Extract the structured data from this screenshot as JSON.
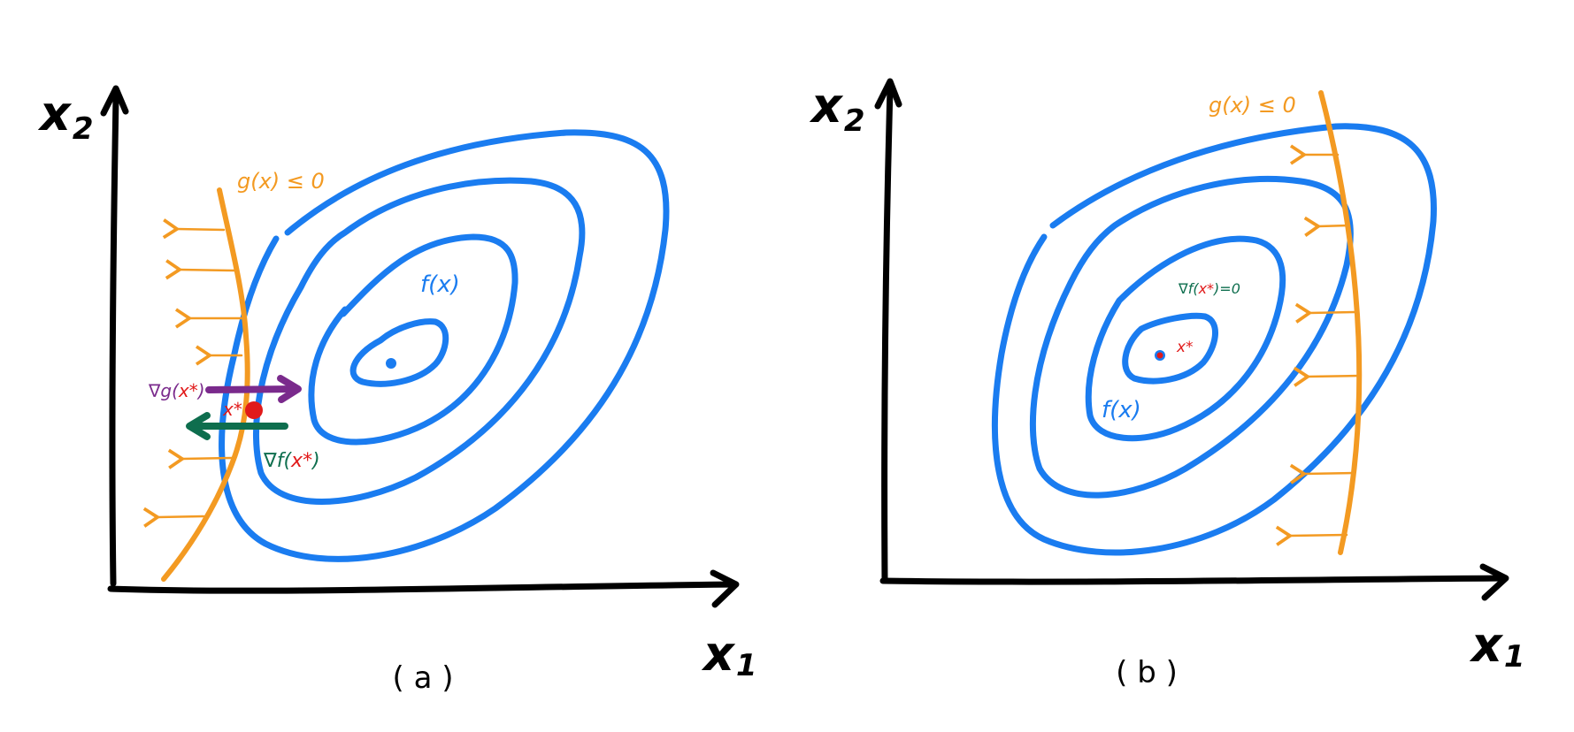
{
  "colors": {
    "axis": "#000000",
    "contour": "#1a7cf0",
    "constraint": "#f39a22",
    "grad_g": "#7a2a8c",
    "grad_f": "#0e6e4e",
    "optimum": "#e11a1a"
  },
  "panel_a": {
    "caption": "( a )",
    "x_axis_label": "x",
    "x_axis_sub": "1",
    "y_axis_label": "x",
    "y_axis_sub": "2",
    "constraint_label": "g(x) ≤ 0",
    "contour_label": "f(x)",
    "grad_g_label_prefix": "∇g(",
    "grad_g_label_x": "x*",
    "grad_g_label_suffix": ")",
    "grad_f_label_prefix": "∇f(",
    "grad_f_label_x": "x*",
    "grad_f_label_suffix": ")",
    "optimum_label": "x*"
  },
  "panel_b": {
    "caption": "( b )",
    "x_axis_label": "x",
    "x_axis_sub": "1",
    "y_axis_label": "x",
    "y_axis_sub": "2",
    "constraint_label": "g(x) ≤ 0",
    "contour_label": "f(x)",
    "grad_f_label_prefix": "∇f(",
    "grad_f_label_x": "x*",
    "grad_f_label_suffix": ")=0",
    "optimum_label": "x*"
  }
}
